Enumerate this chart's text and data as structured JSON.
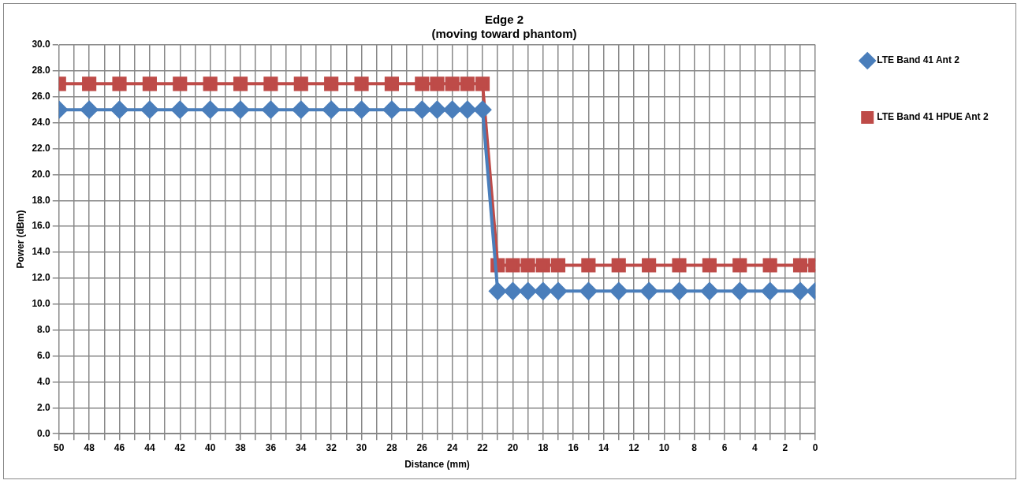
{
  "chart_data": {
    "type": "line",
    "title": "Edge 2",
    "subtitle": "(moving toward phantom)",
    "xlabel": "Distance (mm)",
    "ylabel": "Power (dBm)",
    "x": [
      50,
      48,
      46,
      44,
      42,
      40,
      38,
      36,
      34,
      32,
      30,
      28,
      26,
      25,
      24,
      23,
      22,
      21,
      20,
      19,
      18,
      17,
      15,
      13,
      11,
      9,
      7,
      5,
      3,
      1,
      0
    ],
    "series": [
      {
        "name": "LTE Band 41 Ant 2",
        "color": "#4a7ebb",
        "marker": "diamond",
        "values": [
          25,
          25,
          25,
          25,
          25,
          25,
          25,
          25,
          25,
          25,
          25,
          25,
          25,
          25,
          25,
          25,
          25,
          11,
          11,
          11,
          11,
          11,
          11,
          11,
          11,
          11,
          11,
          11,
          11,
          11,
          11
        ]
      },
      {
        "name": "LTE Band 41 HPUE Ant 2",
        "color": "#be4b48",
        "marker": "square",
        "values": [
          27,
          27,
          27,
          27,
          27,
          27,
          27,
          27,
          27,
          27,
          27,
          27,
          27,
          27,
          27,
          27,
          27,
          13,
          13,
          13,
          13,
          13,
          13,
          13,
          13,
          13,
          13,
          13,
          13,
          13,
          13
        ]
      }
    ],
    "xlim": [
      50,
      0
    ],
    "xticks": [
      50,
      {
        "value": 49,
        "label": null
      },
      48,
      {
        "value": 47,
        "label": null
      },
      46,
      {
        "value": 45,
        "label": null
      },
      44,
      {
        "value": 43,
        "label": null
      },
      42,
      {
        "value": 41,
        "label": null
      },
      40,
      {
        "value": 39,
        "label": null
      },
      38,
      {
        "value": 37,
        "label": null
      },
      36,
      {
        "value": 35,
        "label": null
      },
      34,
      {
        "value": 33,
        "label": null
      },
      32,
      {
        "value": 31,
        "label": null
      },
      30,
      {
        "value": 29,
        "label": null
      },
      28,
      {
        "value": 27,
        "label": null
      },
      26,
      {
        "value": 25,
        "label": null
      },
      24,
      {
        "value": 23,
        "label": null
      },
      22,
      {
        "value": 21,
        "label": null
      },
      20,
      {
        "value": 19,
        "label": null
      },
      18,
      {
        "value": 17,
        "label": null
      },
      16,
      {
        "value": 15,
        "label": null
      },
      14,
      {
        "value": 13,
        "label": null
      },
      12,
      {
        "value": 11,
        "label": null
      },
      10,
      {
        "value": 9,
        "label": null
      },
      8,
      {
        "value": 7,
        "label": null
      },
      6,
      {
        "value": 5,
        "label": null
      },
      4,
      {
        "value": 3,
        "label": null
      },
      2,
      {
        "value": 1,
        "label": null
      },
      0
    ],
    "ylim": [
      0,
      30
    ],
    "yticks": [
      {
        "value": 0,
        "label": "0.0"
      },
      {
        "value": 2,
        "label": "2.0"
      },
      {
        "value": 4,
        "label": "4.0"
      },
      {
        "value": 6,
        "label": "6.0"
      },
      {
        "value": 8,
        "label": "8.0"
      },
      {
        "value": 10,
        "label": "10.0"
      },
      {
        "value": 12,
        "label": "12.0"
      },
      {
        "value": 14,
        "label": "14.0"
      },
      {
        "value": 16,
        "label": "16.0"
      },
      {
        "value": 18,
        "label": "18.0"
      },
      {
        "value": 20,
        "label": "20.0"
      },
      {
        "value": 22,
        "label": "22.0"
      },
      {
        "value": 24,
        "label": "24.0"
      },
      {
        "value": 26,
        "label": "26.0"
      },
      {
        "value": 28,
        "label": "28.0"
      },
      {
        "value": 30,
        "label": "30.0"
      }
    ],
    "grid": true,
    "legend": "right",
    "line_style": "solid"
  }
}
